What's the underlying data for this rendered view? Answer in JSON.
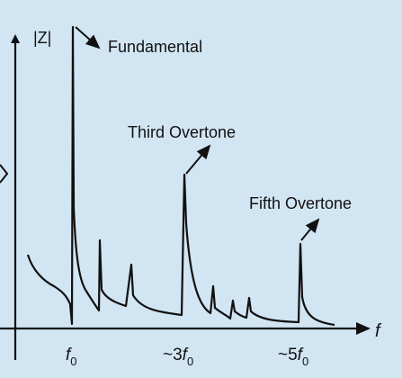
{
  "colors": {
    "background": "#d2e5f2",
    "ink": "#111111"
  },
  "axes": {
    "y_label": "|Z|",
    "x_label": "f"
  },
  "annotations": {
    "fundamental": "Fundamental",
    "third_overtone": "Third Overtone",
    "fifth_overtone": "Fifth Overtone"
  },
  "ticks": {
    "f0": {
      "prefix": "",
      "base": "f",
      "sub": "0"
    },
    "f3": {
      "prefix": "~3",
      "base": "f",
      "sub": "0"
    },
    "f5": {
      "prefix": "~5",
      "base": "f",
      "sub": "0"
    }
  }
}
